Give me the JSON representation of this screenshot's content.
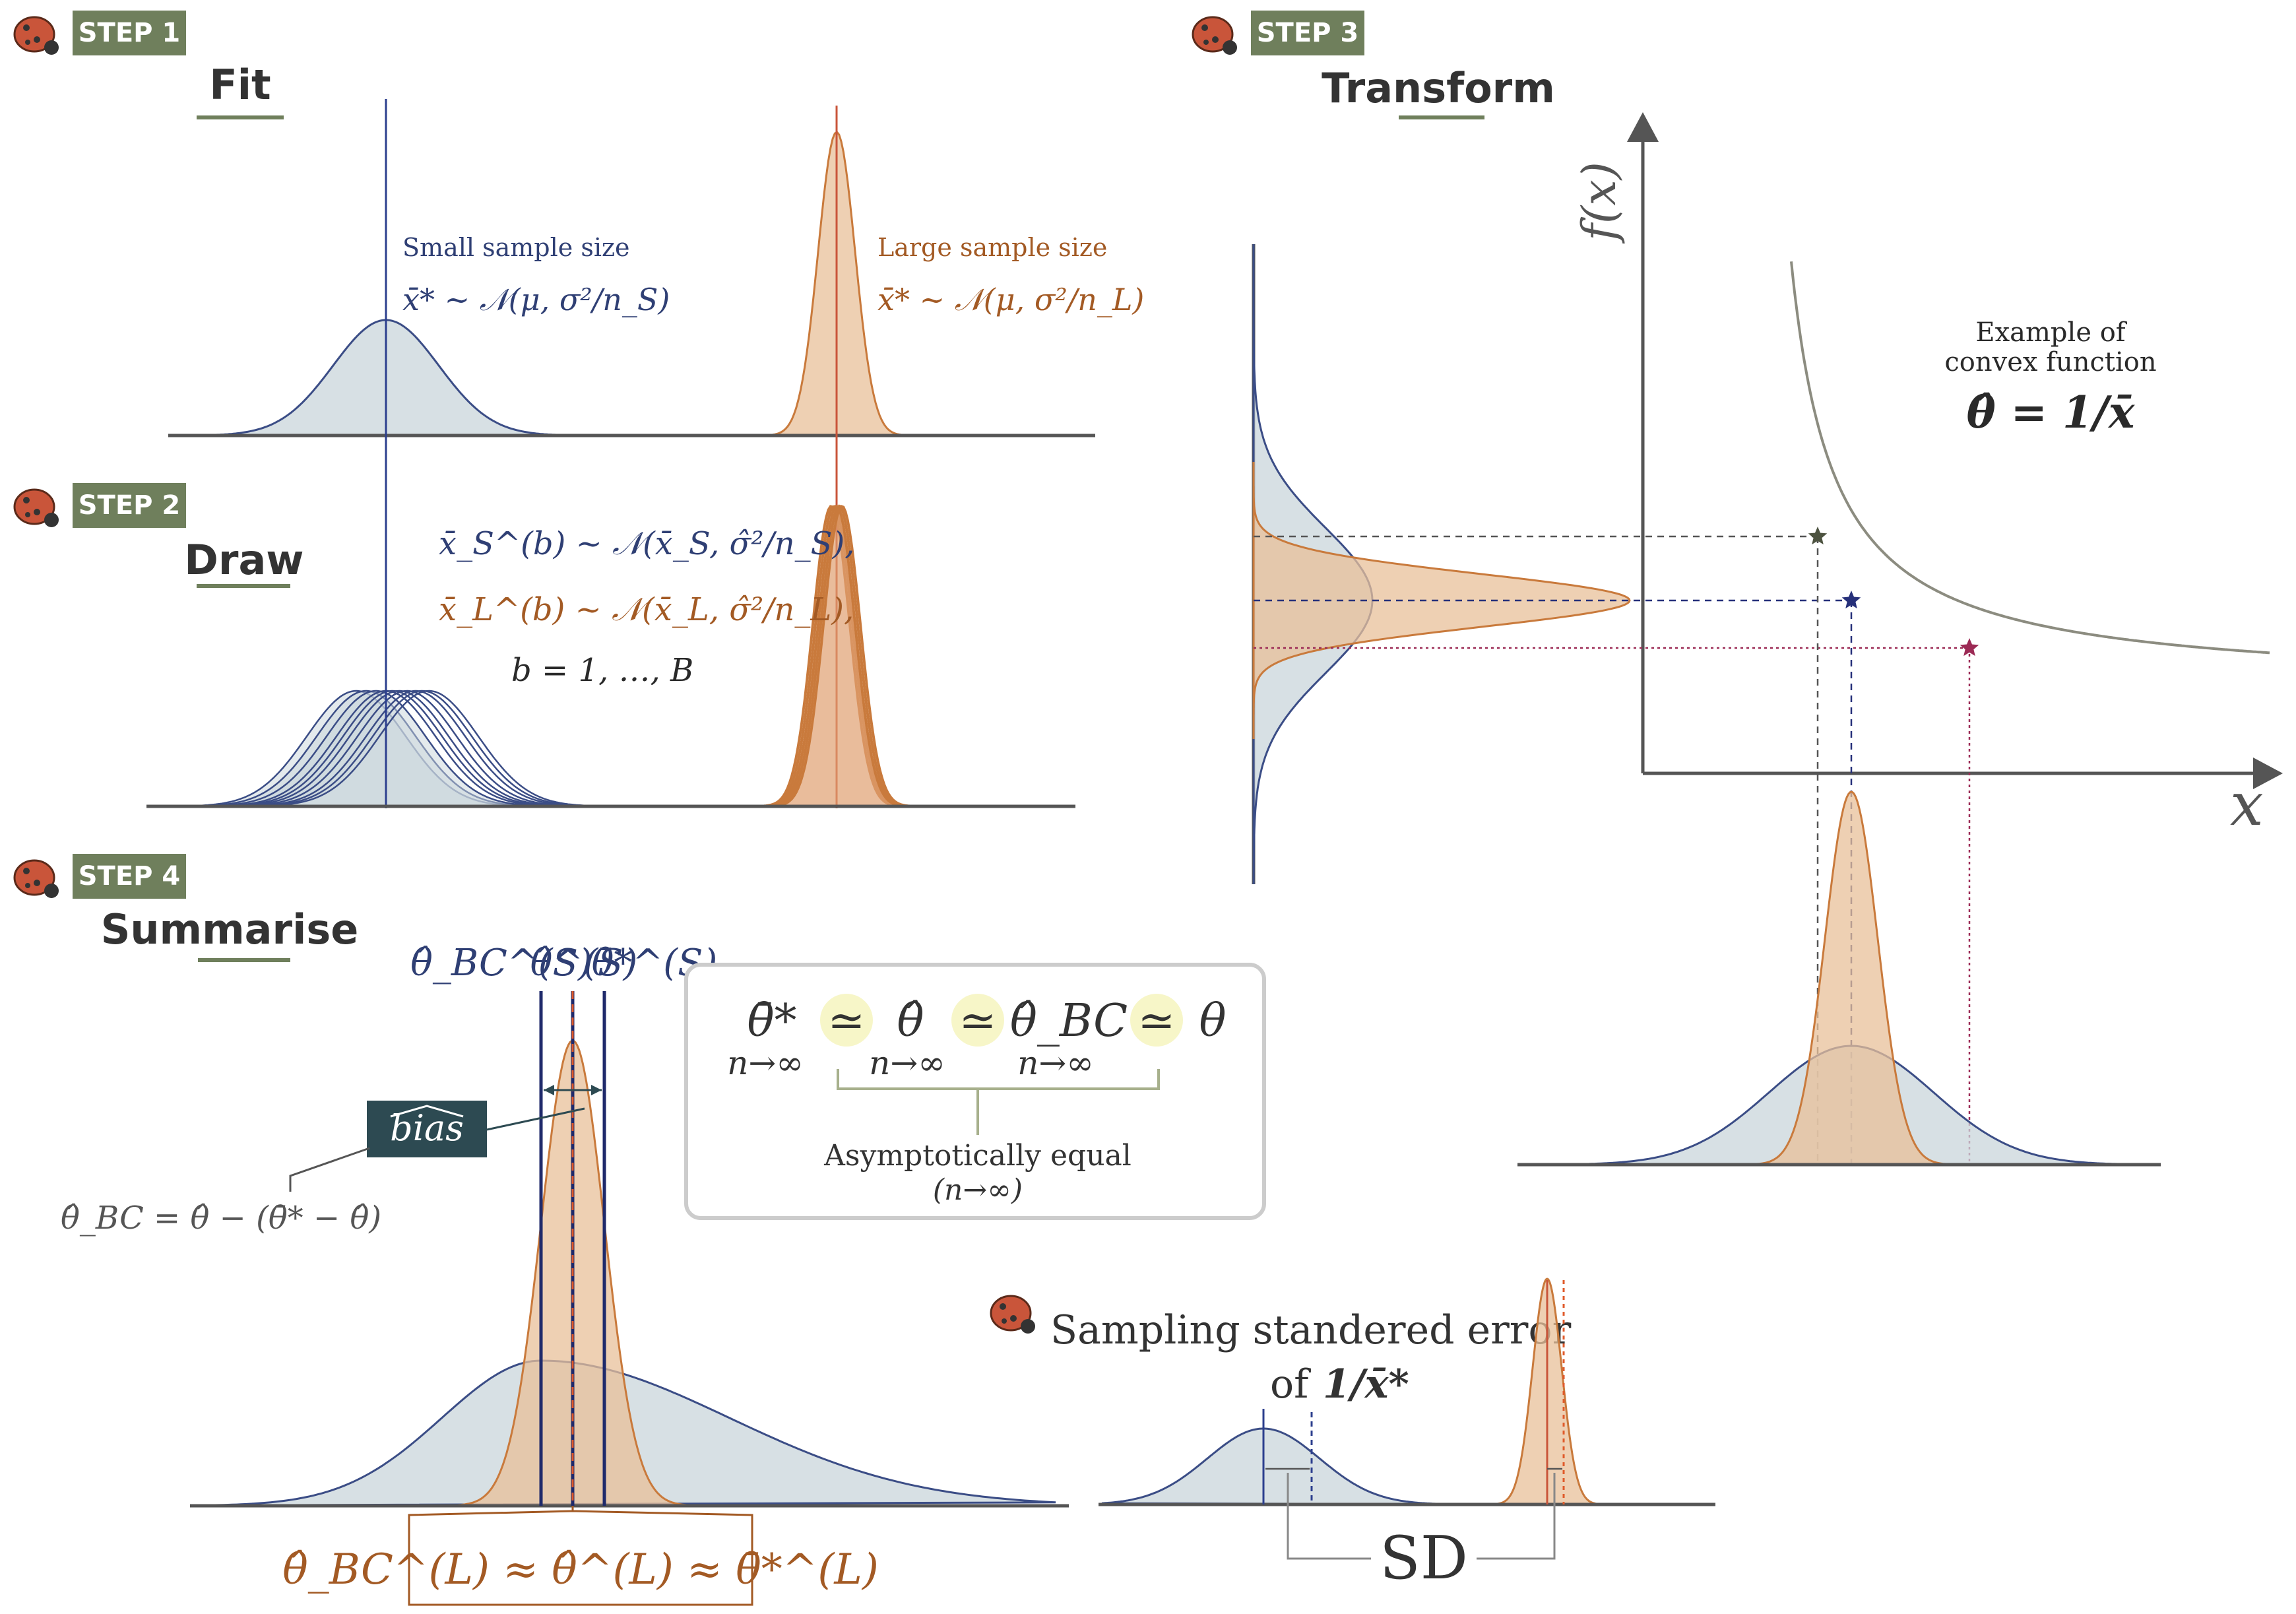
{
  "colors": {
    "badge": "#6f7f5c",
    "blue": "#2f3f74",
    "blue_fill": "#c9d5db",
    "orange": "#c97a3c",
    "orange_fill": "#e8c09a",
    "axis": "#555555",
    "curve": "#8c8c80",
    "ladybug": "#c9553a",
    "bias_box": "#2d4a52",
    "star_dark": "#4d5340",
    "star_blue": "#26307a",
    "star_red": "#9c2a55",
    "highlight": "#f7f6c8"
  },
  "step1": {
    "badge": "STEP 1",
    "title": "Fit",
    "small_label": "Small sample size",
    "small_formula": "x̄* ~ 𝒩(μ, σ²/n_S)",
    "large_label": "Large sample size",
    "large_formula": "x̄* ~ 𝒩(μ, σ²/n_L)"
  },
  "step2": {
    "badge": "STEP 2",
    "title": "Draw",
    "formula_s": "x̄_S^(b) ~ 𝒩(x̄_S, σ̂²/n_S),",
    "formula_l": "x̄_L^(b) ~ 𝒩(x̄_L, σ̂²/n_L),",
    "formula_b": "b = 1, …, B"
  },
  "step3": {
    "badge": "STEP 3",
    "title": "Transform",
    "y_axis": "f(x)",
    "x_axis": "x",
    "example_line1": "Example of",
    "example_line2": "convex function",
    "example_formula": "θ̂ = 1/x̄"
  },
  "step4": {
    "badge": "STEP 4",
    "title": "Summarise",
    "top_labels": [
      "θ̂_BC^(S)",
      "θ̂^(S)",
      "θ̄*^(S)"
    ],
    "bias_label": "bias",
    "bc_formula": "θ̂_BC = θ̂ − (θ̄* − θ̂)",
    "bottom_formula": "θ̂_BC^(L) ≈ θ̂^(L) ≈ θ̄*^(L)",
    "asym_items": [
      "θ̄*",
      "θ̂",
      "θ̂_BC",
      "θ"
    ],
    "asym_symbol": "≃",
    "asym_sub": "n→∞",
    "asym_caption1": "Asymptotically equal",
    "asym_caption2": "(n→∞)"
  },
  "se": {
    "title1": "Sampling standered error",
    "title2": "of",
    "title2_math": "1/x̄*",
    "sd_label": "SD"
  },
  "chart_data": {
    "type": "diagram",
    "distributions": [
      {
        "panel": "Fit",
        "name": "small sample",
        "shape": "wide normal"
      },
      {
        "panel": "Fit",
        "name": "large sample",
        "shape": "narrow normal"
      },
      {
        "panel": "Draw",
        "name": "small sample bootstrap draws",
        "count": 10
      },
      {
        "panel": "Draw",
        "name": "large sample bootstrap draws",
        "count": 5
      },
      {
        "panel": "Transform",
        "function": "f(x) = 1/x",
        "points": 3
      },
      {
        "panel": "Summarise",
        "name": "small sample (skewed)"
      },
      {
        "panel": "Summarise",
        "name": "large sample"
      }
    ]
  }
}
